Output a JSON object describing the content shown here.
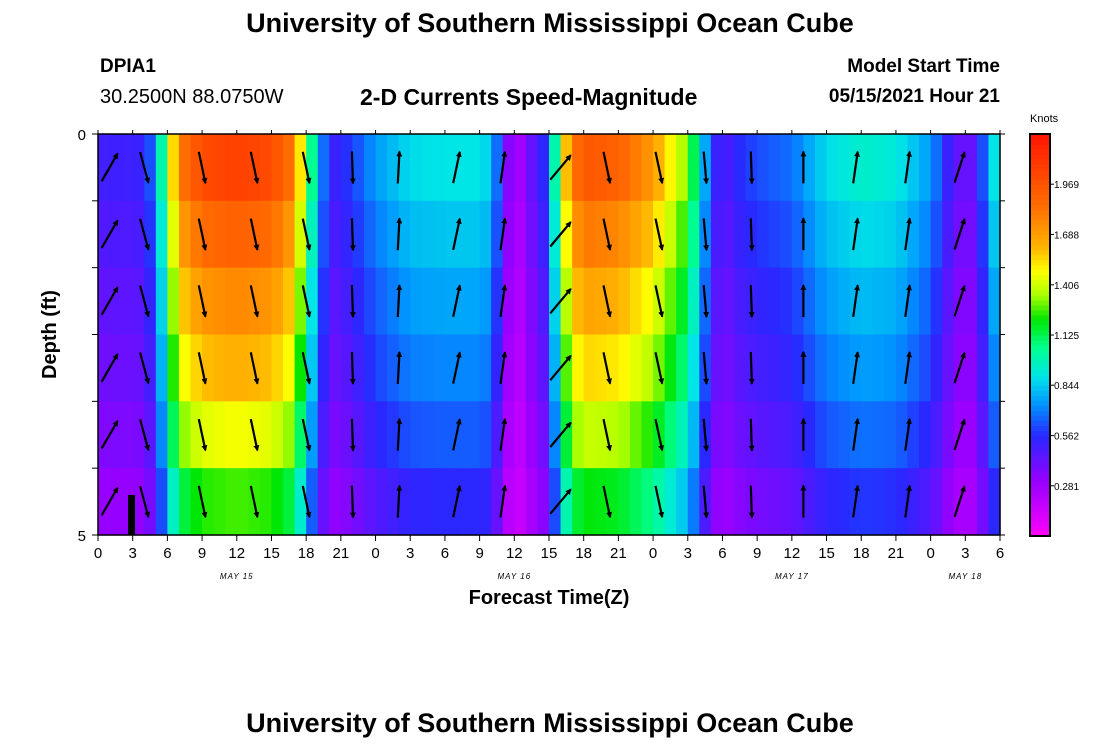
{
  "header": {
    "title": "University of Southern Mississippi Ocean Cube",
    "station": "DPIA1",
    "coordinates": "30.2500N  88.0750W",
    "plot_title": "2-D Currents Speed-Magnitude",
    "model_start_label": "Model Start Time",
    "model_start_value": "05/15/2021 Hour 21"
  },
  "footer": {
    "title": "University of Southern Mississippi Ocean Cube"
  },
  "chart_data": {
    "type": "heatmap",
    "title": "2-D Currents Speed-Magnitude",
    "xlabel": "Forecast Time(Z)",
    "ylabel": "Depth (ft)",
    "x_hours": [
      0,
      3,
      6,
      9,
      12,
      15,
      18,
      21,
      24,
      27,
      30,
      33,
      36,
      39,
      42,
      45,
      48,
      51,
      54,
      57,
      60,
      63,
      66,
      69,
      72,
      75,
      78
    ],
    "x_tick_labels": [
      "0",
      "3",
      "6",
      "9",
      "12",
      "15",
      "18",
      "21",
      "0",
      "3",
      "6",
      "9",
      "12",
      "15",
      "18",
      "21",
      "0",
      "3",
      "6",
      "9",
      "12",
      "15",
      "18",
      "21",
      "0",
      "3",
      "6"
    ],
    "date_labels": [
      {
        "label": "MAY 15",
        "hour": 12
      },
      {
        "label": "MAY 16",
        "hour": 36
      },
      {
        "label": "MAY 17",
        "hour": 60
      },
      {
        "label": "MAY 18",
        "hour": 75
      }
    ],
    "y_tick_labels": [
      "0",
      "5"
    ],
    "ylim": [
      0,
      5
    ],
    "colorbar": {
      "units": "Knots",
      "min": 0.0,
      "max": 2.25,
      "tick_labels": [
        "0.281",
        "0.562",
        "0.844",
        "1.125",
        "1.406",
        "1.688",
        "1.969"
      ]
    },
    "time_profile_hours": [
      0,
      2,
      3,
      4,
      5,
      6,
      7,
      9,
      12,
      15,
      17,
      18,
      19,
      20,
      21,
      22,
      24,
      27,
      30,
      33,
      34,
      35,
      36,
      37,
      38,
      39,
      40,
      41,
      42,
      45,
      48,
      51,
      52,
      53,
      54,
      55,
      57,
      60,
      63,
      66,
      69,
      72,
      74,
      75,
      76,
      77,
      78
    ],
    "surface_speed_knots": [
      0.5,
      0.52,
      0.5,
      0.55,
      0.7,
      1.3,
      1.8,
      2.0,
      2.05,
      2.0,
      1.8,
      1.25,
      0.85,
      0.5,
      0.55,
      0.6,
      0.75,
      0.88,
      0.9,
      0.9,
      0.85,
      0.5,
      0.2,
      0.35,
      0.5,
      0.6,
      1.4,
      1.8,
      1.95,
      1.9,
      1.7,
      1.3,
      0.95,
      0.6,
      0.45,
      0.55,
      0.62,
      0.68,
      0.88,
      0.95,
      0.92,
      0.75,
      0.45,
      0.4,
      0.45,
      0.8,
      1.0
    ],
    "depth_factors": [
      1.0,
      0.93,
      0.86,
      0.8,
      0.72,
      0.62
    ],
    "vector_columns": [
      {
        "hour": 1,
        "angle_deg": 30
      },
      {
        "hour": 4,
        "angle_deg": 165
      },
      {
        "hour": 9,
        "angle_deg": 168
      },
      {
        "hour": 13.5,
        "angle_deg": 168
      },
      {
        "hour": 18,
        "angle_deg": 168
      },
      {
        "hour": 22,
        "angle_deg": 178
      },
      {
        "hour": 26,
        "angle_deg": 3
      },
      {
        "hour": 31,
        "angle_deg": 12
      },
      {
        "hour": 35,
        "angle_deg": 8
      },
      {
        "hour": 40,
        "angle_deg": 40
      },
      {
        "hour": 44,
        "angle_deg": 168
      },
      {
        "hour": 48.5,
        "angle_deg": 168
      },
      {
        "hour": 52.5,
        "angle_deg": 175
      },
      {
        "hour": 56.5,
        "angle_deg": 178
      },
      {
        "hour": 61,
        "angle_deg": 0
      },
      {
        "hour": 65.5,
        "angle_deg": 8
      },
      {
        "hour": 70,
        "angle_deg": 8
      },
      {
        "hour": 74.5,
        "angle_deg": 18
      }
    ],
    "vector_offsets": [
      {
        "name": "vector-row-a",
        "hour_shift": 0.0
      },
      {
        "name": "vector-row-b",
        "hour_shift": 0.0
      }
    ]
  }
}
